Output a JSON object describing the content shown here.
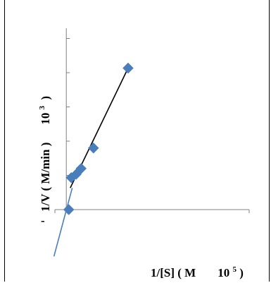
{
  "chart_data": {
    "type": "scatter",
    "title": "",
    "xlabel": {
      "prefix": "1/[S] ( M",
      "gap": "  ",
      "exp_base": "10",
      "exp": "5",
      "suffix": ")"
    },
    "ylabel": {
      "prefix": "1/V ( M/min )",
      "gap": "  ",
      "exp_base": "10",
      "exp": "3",
      "suffix": ")"
    },
    "y_minus_sign": "-",
    "xlim": [
      -1,
      4
    ],
    "ylim": [
      -0.6,
      1.8
    ],
    "grid": false,
    "series": [
      {
        "marker": "diamond",
        "color": "#4a7ebb",
        "points": [
          {
            "x": 0.05,
            "y": 0.0
          },
          {
            "x": 0.1,
            "y": 0.28
          },
          {
            "x": 0.2,
            "y": 0.31
          },
          {
            "x": 0.3,
            "y": 0.36
          },
          {
            "x": 0.55,
            "y": 0.54
          },
          {
            "x": 1.25,
            "y": 1.24
          }
        ]
      }
    ],
    "trendlines": [
      {
        "color": "#000000",
        "from": {
          "x": 0.08,
          "y": 0.19
        },
        "to": {
          "x": 1.25,
          "y": 1.24
        }
      },
      {
        "color": "#4a7ebb",
        "from": {
          "x": -0.25,
          "y": -0.41
        },
        "to": {
          "x": 0.12,
          "y": 0.19
        }
      }
    ]
  }
}
